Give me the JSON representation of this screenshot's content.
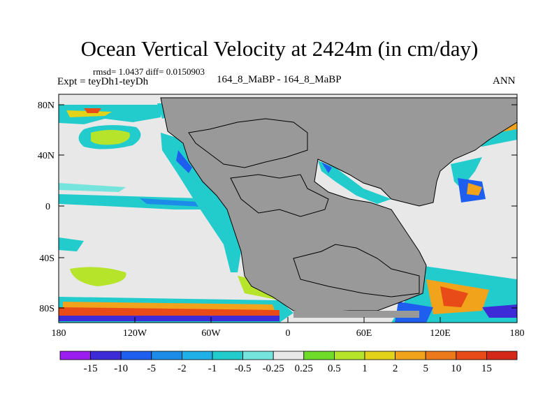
{
  "title": "Ocean Vertical Velocity at 2424m (in cm/day)",
  "stats_line": "rmsd= 1.0437 diff= 0.0150903",
  "experiment_line": "Expt = teyDh1-teyDh",
  "subtitle": "164_8_MaBP - 164_8_MaBP",
  "season": "ANN",
  "y_tick_labels": [
    "80N",
    "40N",
    "0",
    "40S",
    "80S"
  ],
  "x_tick_labels": [
    "180",
    "120W",
    "60W",
    "0",
    "60E",
    "120E",
    "180"
  ],
  "colorbar": {
    "labels": [
      "-15",
      "-10",
      "-5",
      "-2",
      "-1",
      "-0.5",
      "-0.25",
      "0.25",
      "0.5",
      "1",
      "2",
      "5",
      "10",
      "15"
    ],
    "colors": [
      "#9b1df0",
      "#3c2bd6",
      "#1f5ff0",
      "#1c8ce8",
      "#1eb0e6",
      "#22cccc",
      "#74e4dc",
      "#e8e8e8",
      "#6fdc2a",
      "#b6e42a",
      "#e3d21a",
      "#f0a31b",
      "#ed7a1a",
      "#e84a18",
      "#d52818"
    ]
  },
  "colors": {
    "land": "#999999",
    "no_signal": "#e8e8e8"
  }
}
